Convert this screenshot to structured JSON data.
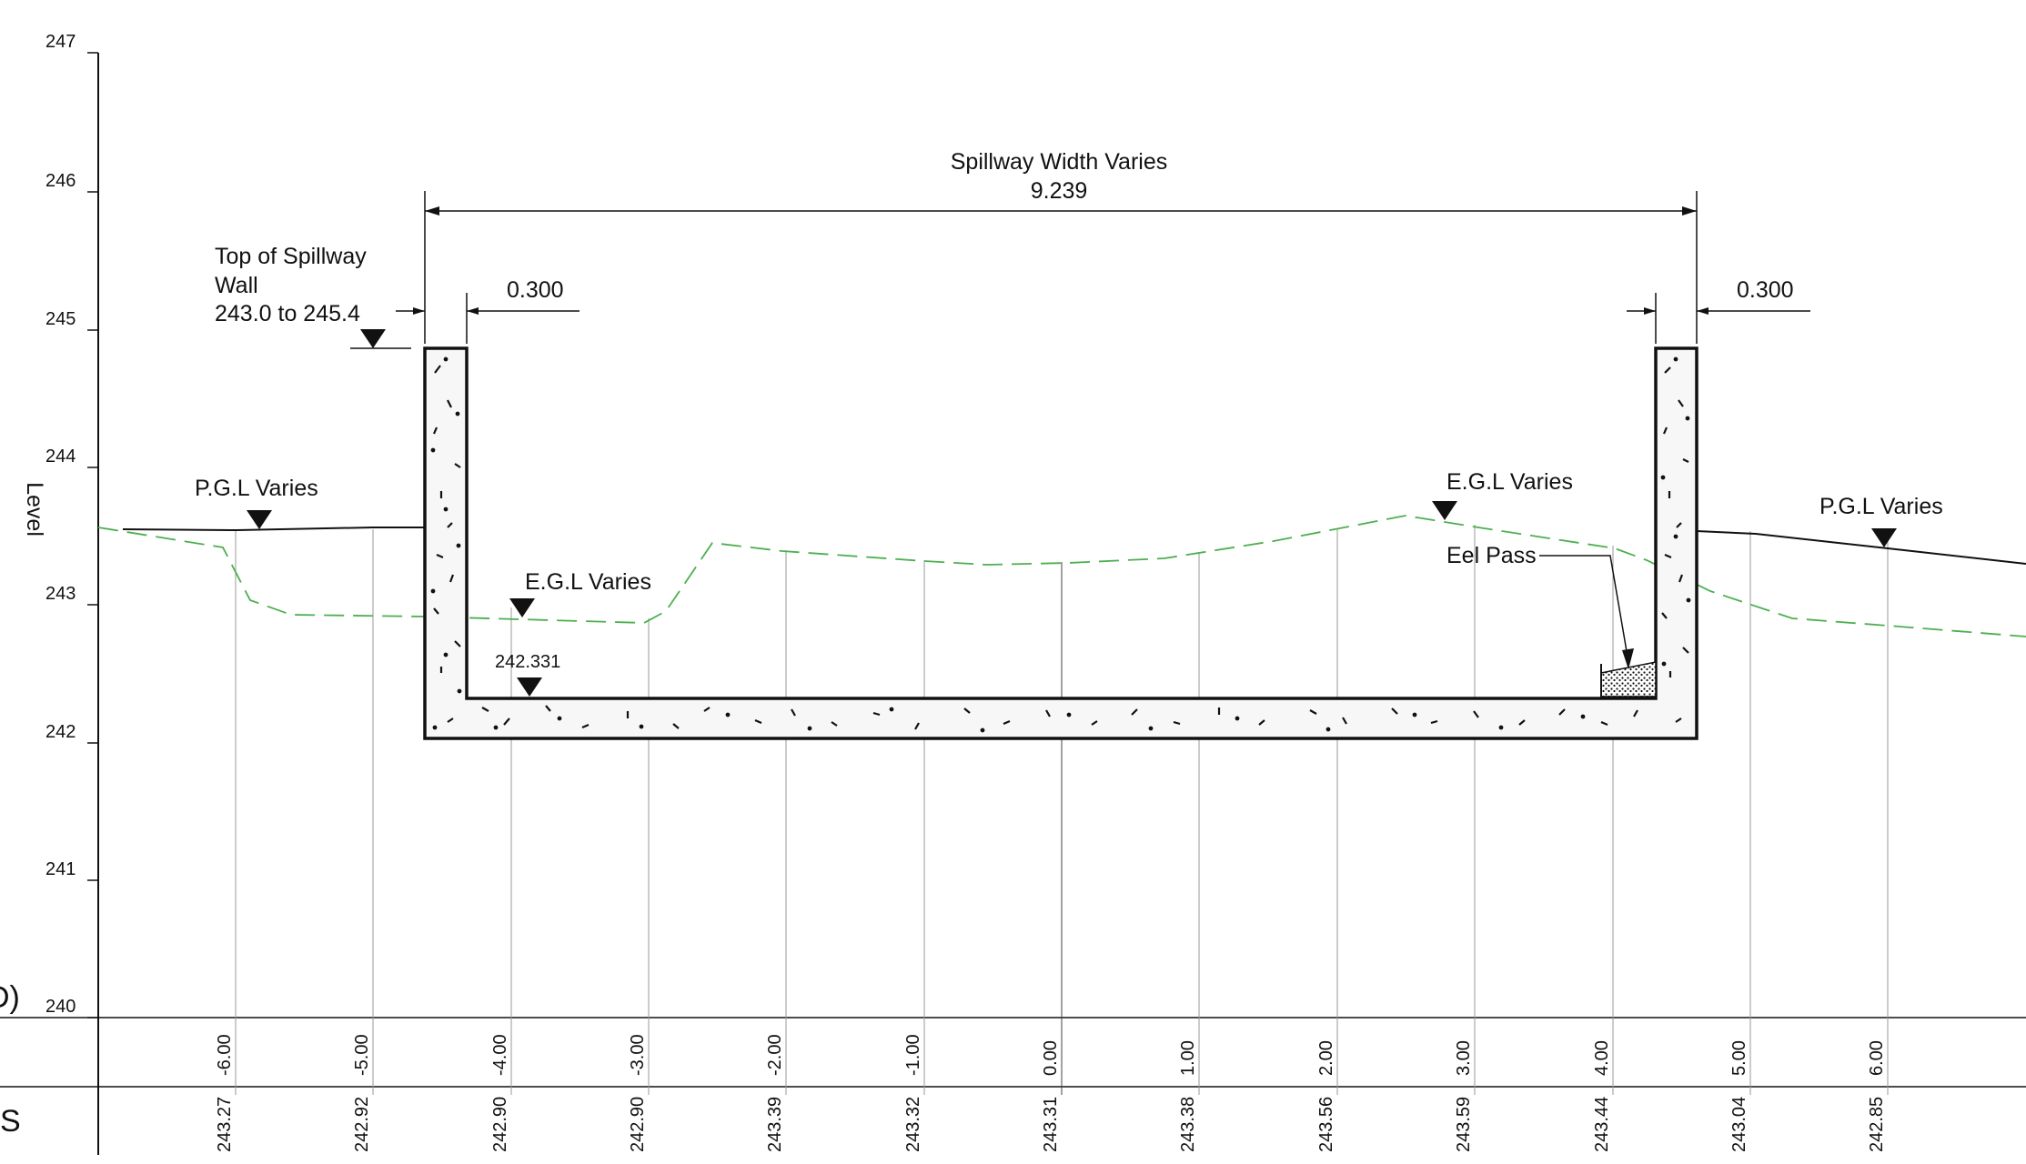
{
  "y_axis": {
    "label": "Level",
    "ticks": [
      "247",
      "246",
      "245",
      "244",
      "243",
      "242",
      "241",
      "240"
    ]
  },
  "x_axis": {
    "offsets": [
      "-6.00",
      "-5.00",
      "-4.00",
      "-3.00",
      "-2.00",
      "-1.00",
      "0.00",
      "1.00",
      "2.00",
      "3.00",
      "4.00",
      "5.00",
      "6.00"
    ],
    "levels": [
      "243.27",
      "242.92",
      "242.90",
      "242.90",
      "243.39",
      "243.32",
      "243.31",
      "243.38",
      "243.56",
      "243.59",
      "243.44",
      "243.04",
      "242.85"
    ]
  },
  "edge_labels": {
    "row1": "D)",
    "row2": "S"
  },
  "annotations": {
    "spillway_width_title": "Spillway Width Varies",
    "spillway_width_value": "9.239",
    "wall_thickness_left": "0.300",
    "wall_thickness_right": "0.300",
    "top_wall_line1": "Top of Spillway",
    "top_wall_line2": "Wall",
    "top_wall_line3": "243.0 to 245.4",
    "pgl_left": "P.G.L Varies",
    "pgl_right": "P.G.L Varies",
    "egl_left": "E.G.L Varies",
    "egl_right": "E.G.L Varies",
    "invert_level": "242.331",
    "eel_pass": "Eel Pass"
  },
  "colors": {
    "line": "#111111",
    "grid": "#9a9a9a",
    "egl": "#4caf50",
    "concrete_fill": "#f7f7f7"
  }
}
